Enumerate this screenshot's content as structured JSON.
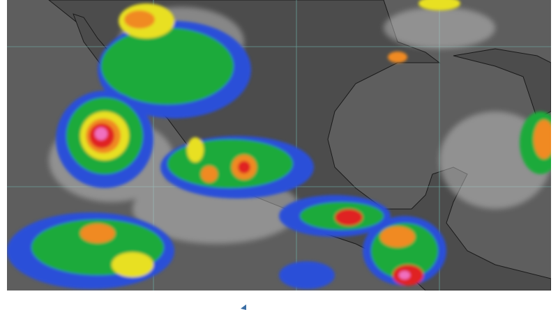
{
  "map": {
    "type": "infrared satellite image",
    "colors": {
      "background": "#5e5e5e",
      "land": "#4a4a4a",
      "coast": "#1a1a1a",
      "grid": "#6fb0a8",
      "cloud_white": "#d8d8d8",
      "cloud_blue": "#2a4fd8",
      "cloud_cyan": "#3ab0e0",
      "cloud_green": "#1faa3a",
      "cloud_yellow": "#e8e020",
      "cloud_orange": "#f08a20",
      "cloud_red": "#e02020",
      "cloud_magenta": "#f070c0"
    }
  }
}
